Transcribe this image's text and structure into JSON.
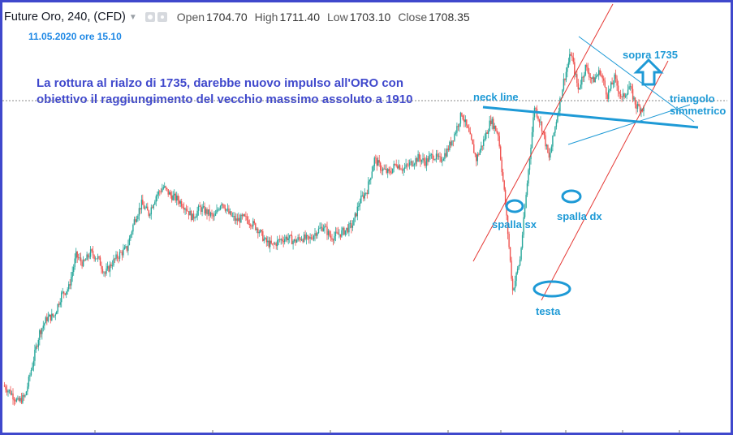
{
  "header": {
    "symbol": "Future Oro, 240, (CFD)",
    "open_label": "Open",
    "open_value": "1704.70",
    "high_label": "High",
    "high_value": "1711.40",
    "low_label": "Low",
    "low_value": "1703.10",
    "close_label": "Close",
    "close_value": "1708.35"
  },
  "date_label": "11.05.2020 ore 15.10",
  "note": {
    "line1": "La rottura al rialzo di 1735, darebbe nuovo impulso all'ORO con",
    "line2": "obiettivo il raggiungimento del vecchio massimo assoluto a 1910"
  },
  "annotations": {
    "neck_line": "neck line",
    "sopra": "sopra 1735",
    "triangolo": "triangolo",
    "simmetrico": "simmetrico",
    "spalla_sx": "spalla sx",
    "spalla_dx": "spalla dx",
    "testa": "testa"
  },
  "colors": {
    "up": "#26a69a",
    "down": "#ef5350",
    "annotation": "#1e9ad6",
    "channel": "#e53935",
    "frame": "#3f48cc"
  },
  "chart_data": {
    "type": "candlestick",
    "title": "Future Oro, 240, (CFD)",
    "last": {
      "open": 1704.7,
      "high": 1711.4,
      "low": 1703.1,
      "close": 1708.35
    },
    "anchors": [
      [
        0,
        1510
      ],
      [
        2,
        1505
      ],
      [
        4,
        1498
      ],
      [
        6,
        1502
      ],
      [
        8,
        1525
      ],
      [
        10,
        1548
      ],
      [
        12,
        1558
      ],
      [
        14,
        1560
      ],
      [
        16,
        1575
      ],
      [
        18,
        1580
      ],
      [
        20,
        1603
      ],
      [
        22,
        1597
      ],
      [
        24,
        1605
      ],
      [
        26,
        1601
      ],
      [
        28,
        1590
      ],
      [
        30,
        1598
      ],
      [
        32,
        1604
      ],
      [
        34,
        1608
      ],
      [
        36,
        1628
      ],
      [
        38,
        1640
      ],
      [
        40,
        1633
      ],
      [
        42,
        1646
      ],
      [
        44,
        1652
      ],
      [
        46,
        1646
      ],
      [
        48,
        1643
      ],
      [
        50,
        1638
      ],
      [
        52,
        1630
      ],
      [
        54,
        1637
      ],
      [
        56,
        1634
      ],
      [
        58,
        1630
      ],
      [
        60,
        1642
      ],
      [
        62,
        1633
      ],
      [
        64,
        1628
      ],
      [
        66,
        1630
      ],
      [
        68,
        1627
      ],
      [
        70,
        1622
      ],
      [
        72,
        1613
      ],
      [
        74,
        1610
      ],
      [
        76,
        1614
      ],
      [
        78,
        1616
      ],
      [
        80,
        1613
      ],
      [
        82,
        1616
      ],
      [
        84,
        1614
      ],
      [
        86,
        1620
      ],
      [
        88,
        1624
      ],
      [
        90,
        1616
      ],
      [
        92,
        1618
      ],
      [
        94,
        1621
      ],
      [
        96,
        1625
      ],
      [
        98,
        1642
      ],
      [
        100,
        1650
      ],
      [
        102,
        1672
      ],
      [
        104,
        1665
      ],
      [
        106,
        1662
      ],
      [
        108,
        1669
      ],
      [
        110,
        1665
      ],
      [
        112,
        1669
      ],
      [
        114,
        1673
      ],
      [
        116,
        1670
      ],
      [
        118,
        1675
      ],
      [
        120,
        1671
      ],
      [
        122,
        1678
      ],
      [
        124,
        1690
      ],
      [
        126,
        1705
      ],
      [
        128,
        1690
      ],
      [
        130,
        1672
      ],
      [
        132,
        1685
      ],
      [
        134,
        1700
      ],
      [
        136,
        1690
      ],
      [
        138,
        1640
      ],
      [
        140,
        1578
      ],
      [
        142,
        1600
      ],
      [
        144,
        1655
      ],
      [
        146,
        1710
      ],
      [
        148,
        1695
      ],
      [
        150,
        1672
      ],
      [
        152,
        1700
      ],
      [
        154,
        1728
      ],
      [
        156,
        1748
      ],
      [
        158,
        1722
      ],
      [
        160,
        1738
      ],
      [
        162,
        1728
      ],
      [
        164,
        1735
      ],
      [
        166,
        1718
      ],
      [
        168,
        1730
      ],
      [
        170,
        1715
      ],
      [
        172,
        1724
      ],
      [
        174,
        1710
      ],
      [
        176,
        1708
      ]
    ]
  }
}
